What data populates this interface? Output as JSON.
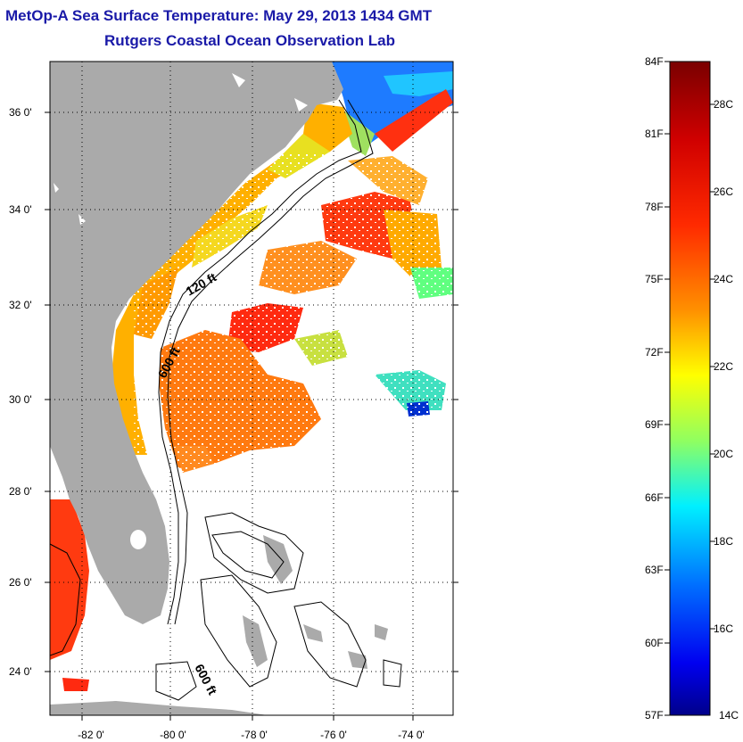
{
  "title": "MetOp-A Sea Surface Temperature:  May 29, 2013 1434 GMT",
  "subtitle": "Rutgers Coastal Ocean Observation Lab",
  "map": {
    "lon_range": [
      -83,
      -73
    ],
    "lat_range": [
      23,
      37
    ],
    "x_ticks": [
      {
        "value": -82,
        "label": "-82 0'"
      },
      {
        "value": -80,
        "label": "-80 0'"
      },
      {
        "value": -78,
        "label": "-78 0'"
      },
      {
        "value": -76,
        "label": "-76 0'"
      },
      {
        "value": -74,
        "label": "-74 0'"
      }
    ],
    "y_ticks": [
      {
        "value": 36,
        "label": "36 0'"
      },
      {
        "value": 34,
        "label": "34 0'"
      },
      {
        "value": 32,
        "label": "32 0'"
      },
      {
        "value": 30,
        "label": "30 0'"
      },
      {
        "value": 28,
        "label": "28 0'"
      },
      {
        "value": 26,
        "label": "26 0'"
      },
      {
        "value": 24,
        "label": "24 0'"
      }
    ],
    "contour_labels": [
      "120 ft",
      "600 ft",
      "600 ft"
    ],
    "land_color": "#aaaaaa",
    "grid": "dotted"
  },
  "colorbar": {
    "f_labels": [
      "84F",
      "81F",
      "78F",
      "75F",
      "72F",
      "69F",
      "66F",
      "63F",
      "60F",
      "57F"
    ],
    "c_labels": [
      "28C",
      "26C",
      "24C",
      "22C",
      "20C",
      "18C",
      "16C",
      "14C"
    ],
    "colors": [
      "#800000",
      "#ff0000",
      "#ff8000",
      "#ffff00",
      "#80ff80",
      "#00ffff",
      "#0080ff",
      "#0000ff",
      "#000080"
    ]
  }
}
